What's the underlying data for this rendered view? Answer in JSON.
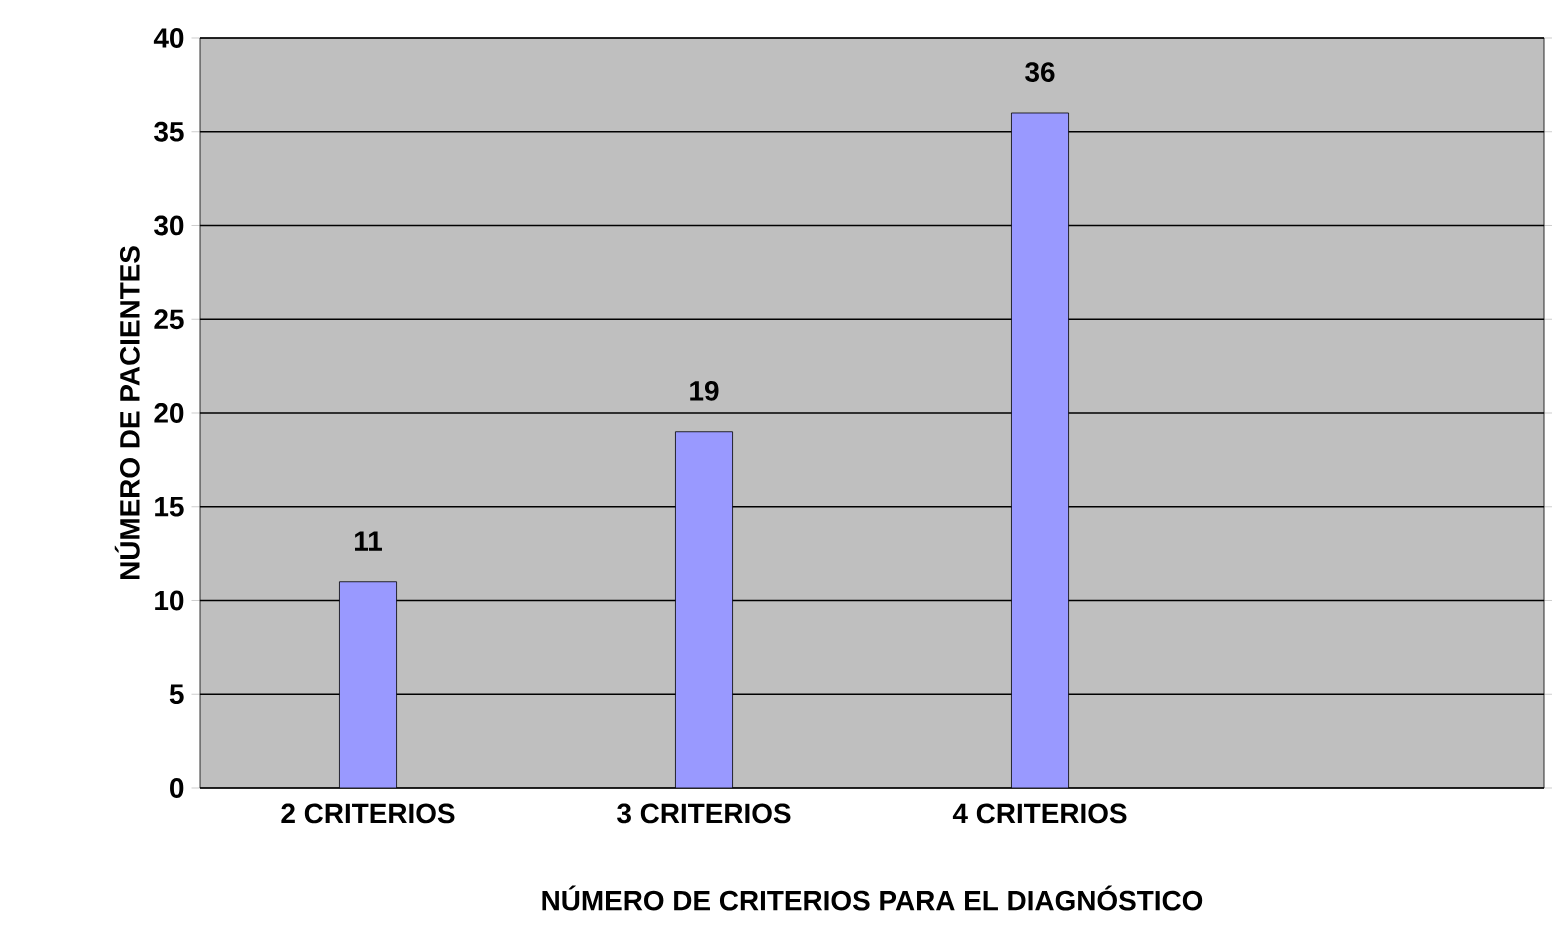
{
  "chart_data": {
    "type": "bar",
    "xlabel": "NÚMERO DE CRITERIOS PARA EL DIAGNÓSTICO",
    "ylabel": "NÚMERO DE PACIENTES",
    "categories": [
      "2 CRITERIOS",
      "3 CRITERIOS",
      "4 CRITERIOS",
      null
    ],
    "values": [
      11,
      19,
      36,
      null
    ],
    "color": "#9999ff",
    "ylim": [
      0,
      40
    ],
    "yticks": [
      0,
      5,
      10,
      15,
      20,
      25,
      30,
      35,
      40
    ],
    "grid": "y",
    "data_labels": true
  }
}
